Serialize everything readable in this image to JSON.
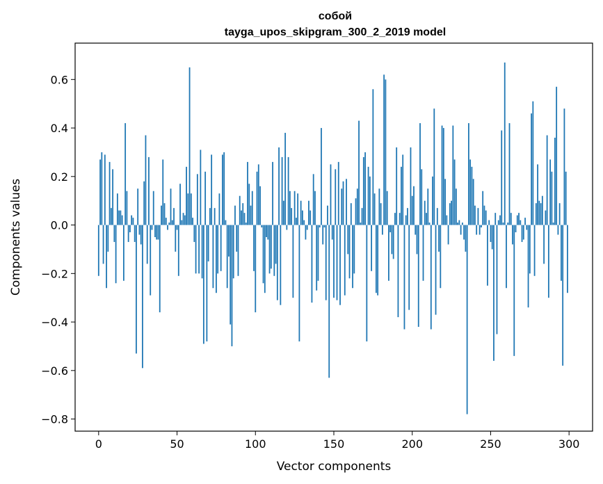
{
  "chart_data": {
    "type": "bar",
    "title": "собой",
    "subtitle": "tayga_upos_skipgram_300_2_2019 model",
    "xlabel": "Vector components",
    "ylabel": "Components values",
    "xlim": [
      -15,
      315
    ],
    "ylim": [
      -0.85,
      0.75
    ],
    "xticks": [
      0,
      50,
      100,
      150,
      200,
      250,
      300
    ],
    "yticks": [
      -0.8,
      -0.6,
      -0.4,
      -0.2,
      0.0,
      0.2,
      0.4,
      0.6
    ],
    "xtick_labels": [
      "0",
      "50",
      "100",
      "150",
      "200",
      "250",
      "300"
    ],
    "ytick_labels": [
      "−0.8",
      "−0.6",
      "−0.4",
      "−0.2",
      "0.0",
      "0.2",
      "0.4",
      "0.6"
    ],
    "color": "#1f77b4",
    "grid": false,
    "x": [
      0,
      1,
      2,
      3,
      4,
      5,
      6,
      7,
      8,
      9,
      10,
      11,
      12,
      13,
      14,
      15,
      16,
      17,
      18,
      19,
      20,
      21,
      22,
      23,
      24,
      25,
      26,
      27,
      28,
      29,
      30,
      31,
      32,
      33,
      34,
      35,
      36,
      37,
      38,
      39,
      40,
      41,
      42,
      43,
      44,
      45,
      46,
      47,
      48,
      49,
      50,
      51,
      52,
      53,
      54,
      55,
      56,
      57,
      58,
      59,
      60,
      61,
      62,
      63,
      64,
      65,
      66,
      67,
      68,
      69,
      70,
      71,
      72,
      73,
      74,
      75,
      76,
      77,
      78,
      79,
      80,
      81,
      82,
      83,
      84,
      85,
      86,
      87,
      88,
      89,
      90,
      91,
      92,
      93,
      94,
      95,
      96,
      97,
      98,
      99,
      100,
      101,
      102,
      103,
      104,
      105,
      106,
      107,
      108,
      109,
      110,
      111,
      112,
      113,
      114,
      115,
      116,
      117,
      118,
      119,
      120,
      121,
      122,
      123,
      124,
      125,
      126,
      127,
      128,
      129,
      130,
      131,
      132,
      133,
      134,
      135,
      136,
      137,
      138,
      139,
      140,
      141,
      142,
      143,
      144,
      145,
      146,
      147,
      148,
      149,
      150,
      151,
      152,
      153,
      154,
      155,
      156,
      157,
      158,
      159,
      160,
      161,
      162,
      163,
      164,
      165,
      166,
      167,
      168,
      169,
      170,
      171,
      172,
      173,
      174,
      175,
      176,
      177,
      178,
      179,
      180,
      181,
      182,
      183,
      184,
      185,
      186,
      187,
      188,
      189,
      190,
      191,
      192,
      193,
      194,
      195,
      196,
      197,
      198,
      199,
      200,
      201,
      202,
      203,
      204,
      205,
      206,
      207,
      208,
      209,
      210,
      211,
      212,
      213,
      214,
      215,
      216,
      217,
      218,
      219,
      220,
      221,
      222,
      223,
      224,
      225,
      226,
      227,
      228,
      229,
      230,
      231,
      232,
      233,
      234,
      235,
      236,
      237,
      238,
      239,
      240,
      241,
      242,
      243,
      244,
      245,
      246,
      247,
      248,
      249,
      250,
      251,
      252,
      253,
      254,
      255,
      256,
      257,
      258,
      259,
      260,
      261,
      262,
      263,
      264,
      265,
      266,
      267,
      268,
      269,
      270,
      271,
      272,
      273,
      274,
      275,
      276,
      277,
      278,
      279,
      280,
      281,
      282,
      283,
      284,
      285,
      286,
      287,
      288,
      289,
      290,
      291,
      292,
      293,
      294,
      295,
      296,
      297,
      298,
      299
    ],
    "values": [
      -0.21,
      0.27,
      0.3,
      -0.16,
      0.29,
      -0.26,
      -0.11,
      0.26,
      0.07,
      0.23,
      -0.07,
      -0.24,
      0.13,
      0.06,
      0.06,
      0.04,
      -0.23,
      0.42,
      0.14,
      -0.07,
      -0.03,
      0.04,
      0.03,
      -0.07,
      -0.53,
      0.15,
      -0.04,
      -0.08,
      -0.59,
      0.18,
      0.37,
      -0.16,
      0.28,
      -0.29,
      -0.02,
      0.14,
      -0.05,
      -0.06,
      -0.06,
      -0.36,
      0.08,
      0.27,
      0.09,
      0.03,
      -0.02,
      0.01,
      0.15,
      0.02,
      0.07,
      -0.11,
      -0.02,
      -0.21,
      0.17,
      0.02,
      0.05,
      0.04,
      0.24,
      0.13,
      0.65,
      0.13,
      0.03,
      -0.07,
      -0.2,
      0.21,
      -0.2,
      0.31,
      -0.22,
      -0.49,
      0.22,
      -0.48,
      -0.15,
      0.07,
      0.29,
      -0.26,
      0.07,
      -0.28,
      -0.2,
      0.13,
      -0.19,
      0.29,
      0.3,
      0.02,
      -0.26,
      -0.13,
      -0.41,
      -0.5,
      -0.22,
      0.08,
      -0.11,
      -0.21,
      0.12,
      0.06,
      0.09,
      0.05,
      0.01,
      0.26,
      0.17,
      0.08,
      0.14,
      -0.19,
      -0.36,
      0.22,
      0.25,
      0.16,
      -0.01,
      -0.24,
      -0.28,
      -0.05,
      -0.06,
      -0.2,
      -0.18,
      0.26,
      -0.21,
      -0.16,
      -0.31,
      0.32,
      -0.33,
      0.28,
      0.1,
      0.38,
      -0.02,
      0.28,
      0.14,
      0.07,
      -0.3,
      0.14,
      0.03,
      0.13,
      -0.48,
      0.1,
      0.06,
      0.02,
      -0.06,
      -0.02,
      0.1,
      0.06,
      -0.32,
      0.21,
      0.14,
      -0.27,
      -0.23,
      -0.01,
      0.4,
      -0.08,
      -0.01,
      -0.31,
      0.08,
      -0.63,
      0.25,
      -0.06,
      -0.3,
      0.23,
      -0.31,
      0.26,
      -0.33,
      0.15,
      0.18,
      -0.29,
      0.19,
      -0.12,
      -0.22,
      0.09,
      -0.26,
      -0.2,
      0.11,
      0.15,
      0.43,
      0.01,
      0.07,
      0.28,
      0.3,
      -0.48,
      0.24,
      0.2,
      -0.19,
      0.56,
      0.13,
      -0.28,
      -0.29,
      0.15,
      0.09,
      -0.04,
      0.62,
      0.6,
      0.14,
      -0.23,
      -0.03,
      -0.12,
      -0.14,
      0.05,
      0.32,
      -0.38,
      0.05,
      0.24,
      0.29,
      -0.43,
      0.04,
      0.07,
      -0.35,
      0.32,
      0.12,
      0.16,
      -0.04,
      -0.12,
      -0.42,
      0.42,
      0.23,
      -0.23,
      0.1,
      0.05,
      0.15,
      0.01,
      -0.43,
      0.2,
      0.48,
      -0.37,
      0.07,
      -0.11,
      -0.26,
      0.41,
      0.4,
      0.19,
      0.04,
      -0.08,
      0.09,
      0.1,
      0.41,
      0.27,
      0.15,
      0.01,
      0.02,
      -0.04,
      0.01,
      -0.06,
      -0.11,
      -0.78,
      0.42,
      0.27,
      0.24,
      0.19,
      0.08,
      -0.04,
      0.07,
      -0.04,
      -0.01,
      0.14,
      0.08,
      0.06,
      -0.25,
      0.02,
      -0.07,
      -0.1,
      -0.56,
      0.05,
      -0.45,
      0.02,
      0.04,
      0.39,
      0.01,
      0.67,
      -0.26,
      0.01,
      0.42,
      0.05,
      -0.08,
      -0.54,
      -0.03,
      0.04,
      0.05,
      0.02,
      -0.07,
      -0.06,
      0.03,
      -0.02,
      -0.34,
      -0.2,
      0.46,
      0.51,
      -0.21,
      0.09,
      0.25,
      0.1,
      0.09,
      0.12,
      -0.16,
      0.06,
      0.37,
      -0.3,
      0.27,
      0.22,
      0.01,
      0.36,
      0.57,
      -0.04,
      0.09,
      -0.23,
      -0.58,
      0.48,
      0.22,
      -0.28
    ]
  }
}
